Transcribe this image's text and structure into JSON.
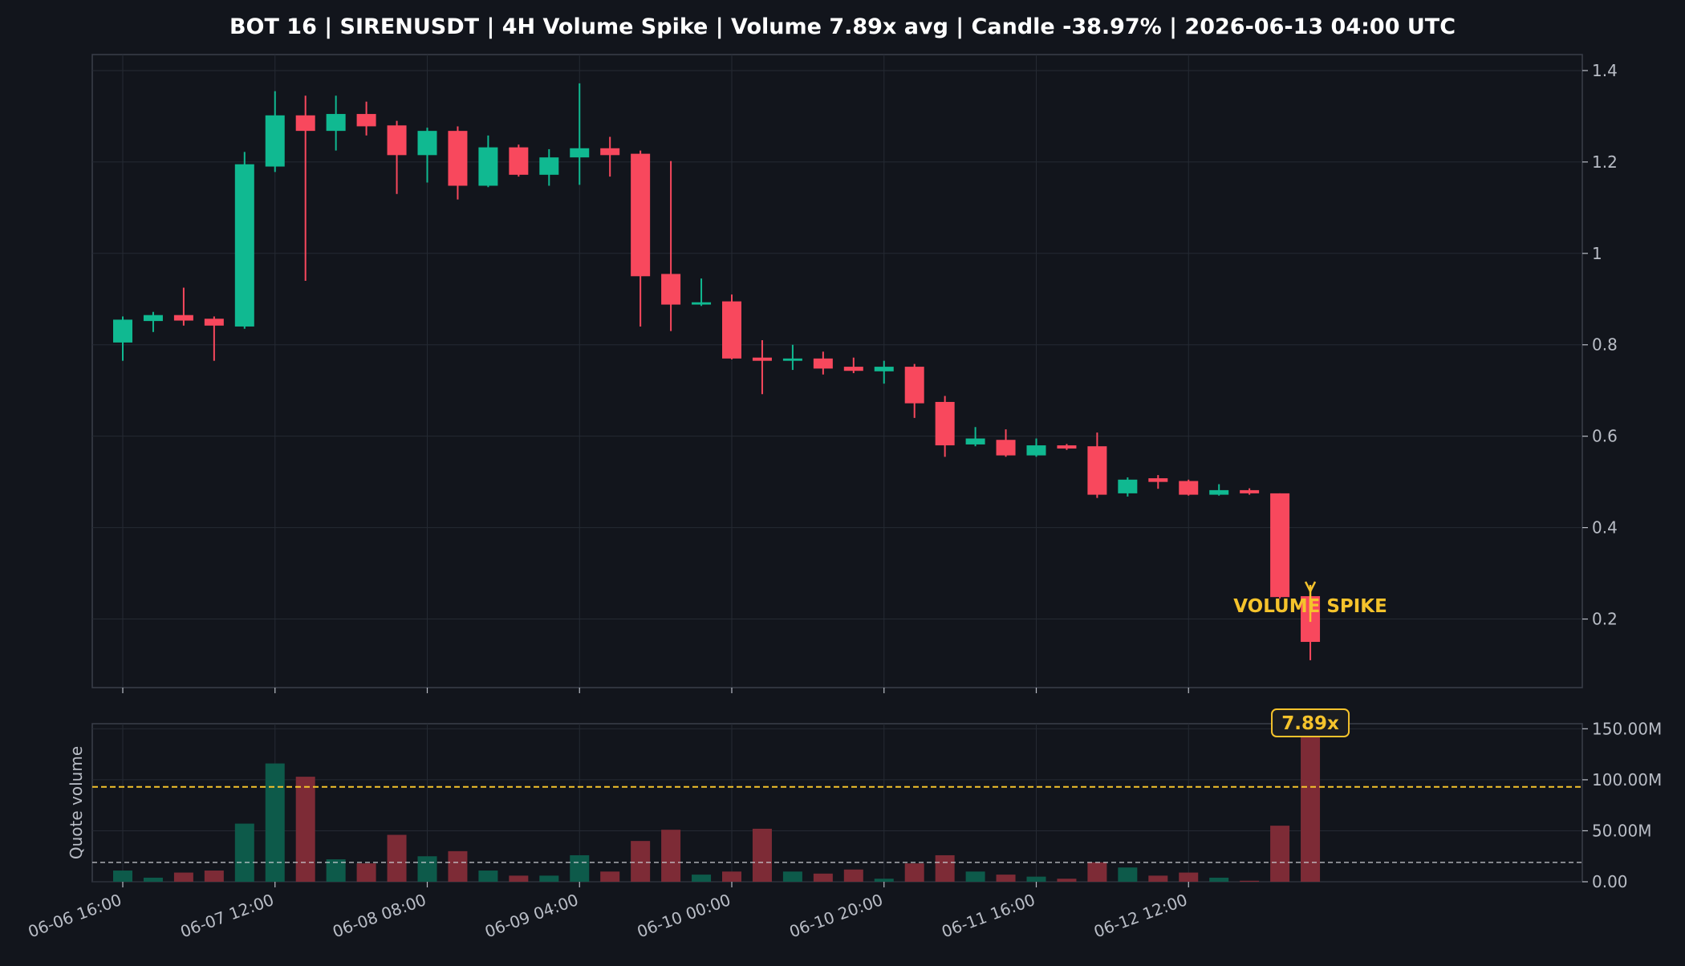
{
  "title": "BOT 16 | SIRENUSDT | 4H Volume Spike | Volume 7.89x avg | Candle -38.97% | 2026-06-13 04:00 UTC",
  "colors": {
    "background": "#12151c",
    "panel_border": "#3a3f4a",
    "grid": "#252a33",
    "up": "#10b991",
    "down": "#f8485d",
    "up_volume": "#0d5a4a",
    "down_volume": "#7d2b36",
    "spike": "#f5c32c",
    "avg_line": "#d0d2d8",
    "text": "#ffffff",
    "tick_text": "#b9bdc6"
  },
  "chart_data": {
    "type": "candlestick",
    "price_yticks": [
      "0.2",
      "0.4",
      "0.6",
      "0.8",
      "1",
      "1.2",
      "1.4"
    ],
    "price_ylim": [
      0.05,
      1.435
    ],
    "volume_yticks": [
      "0.00",
      "50.00M",
      "100.00M",
      "150.00M"
    ],
    "volume_ylim": [
      0,
      155
    ],
    "volume_ylabel": "Quote volume",
    "xtick_labels": [
      "06-06 16:00",
      "06-07 12:00",
      "06-08 08:00",
      "06-09 04:00",
      "06-10 00:00",
      "06-10 20:00",
      "06-11 16:00",
      "06-12 12:00"
    ],
    "xtick_every": 5,
    "volume_units": "millions",
    "candles": [
      {
        "o": 0.805,
        "h": 0.862,
        "l": 0.765,
        "c": 0.855,
        "v": 11
      },
      {
        "o": 0.852,
        "h": 0.872,
        "l": 0.828,
        "c": 0.865,
        "v": 4
      },
      {
        "o": 0.865,
        "h": 0.925,
        "l": 0.842,
        "c": 0.853,
        "v": 9
      },
      {
        "o": 0.857,
        "h": 0.862,
        "l": 0.765,
        "c": 0.842,
        "v": 11
      },
      {
        "o": 0.84,
        "h": 1.222,
        "l": 0.835,
        "c": 1.195,
        "v": 57
      },
      {
        "o": 1.19,
        "h": 1.355,
        "l": 1.178,
        "c": 1.302,
        "v": 116
      },
      {
        "o": 1.302,
        "h": 1.345,
        "l": 0.94,
        "c": 1.268,
        "v": 103
      },
      {
        "o": 1.268,
        "h": 1.345,
        "l": 1.225,
        "c": 1.305,
        "v": 22
      },
      {
        "o": 1.305,
        "h": 1.332,
        "l": 1.258,
        "c": 1.278,
        "v": 18
      },
      {
        "o": 1.28,
        "h": 1.29,
        "l": 1.13,
        "c": 1.215,
        "v": 46
      },
      {
        "o": 1.215,
        "h": 1.275,
        "l": 1.155,
        "c": 1.268,
        "v": 25
      },
      {
        "o": 1.268,
        "h": 1.278,
        "l": 1.118,
        "c": 1.148,
        "v": 30
      },
      {
        "o": 1.148,
        "h": 1.258,
        "l": 1.145,
        "c": 1.232,
        "v": 11
      },
      {
        "o": 1.232,
        "h": 1.238,
        "l": 1.168,
        "c": 1.172,
        "v": 6
      },
      {
        "o": 1.172,
        "h": 1.228,
        "l": 1.148,
        "c": 1.21,
        "v": 6
      },
      {
        "o": 1.21,
        "h": 1.372,
        "l": 1.15,
        "c": 1.23,
        "v": 26
      },
      {
        "o": 1.23,
        "h": 1.255,
        "l": 1.168,
        "c": 1.215,
        "v": 10
      },
      {
        "o": 1.218,
        "h": 1.225,
        "l": 0.84,
        "c": 0.95,
        "v": 40
      },
      {
        "o": 0.955,
        "h": 1.202,
        "l": 0.83,
        "c": 0.888,
        "v": 51
      },
      {
        "o": 0.888,
        "h": 0.945,
        "l": 0.885,
        "c": 0.893,
        "v": 7
      },
      {
        "o": 0.895,
        "h": 0.91,
        "l": 0.768,
        "c": 0.77,
        "v": 10
      },
      {
        "o": 0.772,
        "h": 0.81,
        "l": 0.692,
        "c": 0.765,
        "v": 52
      },
      {
        "o": 0.765,
        "h": 0.8,
        "l": 0.745,
        "c": 0.77,
        "v": 10
      },
      {
        "o": 0.77,
        "h": 0.785,
        "l": 0.735,
        "c": 0.748,
        "v": 8
      },
      {
        "o": 0.752,
        "h": 0.772,
        "l": 0.738,
        "c": 0.743,
        "v": 12
      },
      {
        "o": 0.742,
        "h": 0.765,
        "l": 0.715,
        "c": 0.752,
        "v": 3
      },
      {
        "o": 0.752,
        "h": 0.758,
        "l": 0.64,
        "c": 0.672,
        "v": 18
      },
      {
        "o": 0.675,
        "h": 0.688,
        "l": 0.555,
        "c": 0.58,
        "v": 26
      },
      {
        "o": 0.582,
        "h": 0.62,
        "l": 0.578,
        "c": 0.595,
        "v": 10
      },
      {
        "o": 0.592,
        "h": 0.615,
        "l": 0.555,
        "c": 0.558,
        "v": 7
      },
      {
        "o": 0.558,
        "h": 0.595,
        "l": 0.555,
        "c": 0.58,
        "v": 5
      },
      {
        "o": 0.58,
        "h": 0.583,
        "l": 0.57,
        "c": 0.573,
        "v": 3
      },
      {
        "o": 0.578,
        "h": 0.608,
        "l": 0.465,
        "c": 0.472,
        "v": 19
      },
      {
        "o": 0.475,
        "h": 0.51,
        "l": 0.468,
        "c": 0.505,
        "v": 14
      },
      {
        "o": 0.508,
        "h": 0.515,
        "l": 0.485,
        "c": 0.5,
        "v": 6
      },
      {
        "o": 0.502,
        "h": 0.505,
        "l": 0.47,
        "c": 0.472,
        "v": 9
      },
      {
        "o": 0.472,
        "h": 0.495,
        "l": 0.47,
        "c": 0.482,
        "v": 4
      },
      {
        "o": 0.482,
        "h": 0.486,
        "l": 0.472,
        "c": 0.475,
        "v": 1
      },
      {
        "o": 0.475,
        "h": 0.475,
        "l": 0.245,
        "c": 0.248,
        "v": 55
      },
      {
        "o": 0.25,
        "h": 0.25,
        "l": 0.11,
        "c": 0.15,
        "v": 150
      }
    ],
    "avg_volume": 19,
    "spike_threshold": 93,
    "annotation": "VOLUME SPIKE",
    "spike_badge": "7.89x",
    "spike_index": 39,
    "grid": true,
    "total_slots": 49
  }
}
